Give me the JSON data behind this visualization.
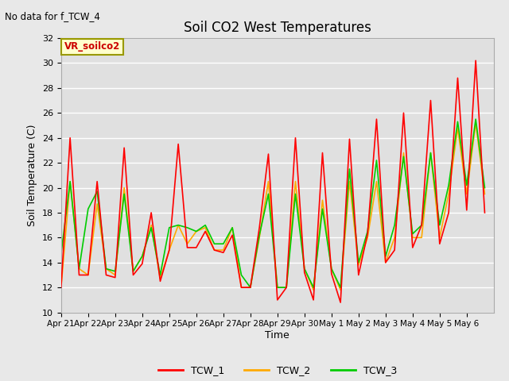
{
  "title": "Soil CO2 West Temperatures",
  "subtitle": "No data for f_TCW_4",
  "ylabel": "Soil Temperature (C)",
  "xlabel": "Time",
  "ylim": [
    10,
    32
  ],
  "yticks": [
    10,
    12,
    14,
    16,
    18,
    20,
    22,
    24,
    26,
    28,
    30,
    32
  ],
  "xtick_labels": [
    "Apr 21",
    "Apr 22",
    "Apr 23",
    "Apr 24",
    "Apr 25",
    "Apr 26",
    "Apr 27",
    "Apr 28",
    "Apr 29",
    "Apr 30",
    "May 1",
    "May 2",
    "May 3",
    "May 4",
    "May 5",
    "May 6"
  ],
  "annotation_text": "VR_soilco2",
  "annotation_box_color": "#ffffcc",
  "annotation_box_edge": "#999900",
  "annotation_text_color": "#cc0000",
  "line_colors": {
    "TCW_1": "#ff0000",
    "TCW_2": "#ffaa00",
    "TCW_3": "#00cc00"
  },
  "background_color": "#e8e8e8",
  "plot_bg_color": "#e0e0e0",
  "grid_color": "#ffffff",
  "TCW_1": [
    12.0,
    24.0,
    13.0,
    13.0,
    20.5,
    13.0,
    12.8,
    23.2,
    13.0,
    13.9,
    18.0,
    12.5,
    15.0,
    23.5,
    15.2,
    15.2,
    16.5,
    15.0,
    14.8,
    16.2,
    12.0,
    12.0,
    16.8,
    22.7,
    11.0,
    12.0,
    24.0,
    13.2,
    11.0,
    22.8,
    13.1,
    10.8,
    23.9,
    13.0,
    16.3,
    25.5,
    14.0,
    15.0,
    26.0,
    15.2,
    17.0,
    27.0,
    15.5,
    18.0,
    28.8,
    18.2,
    30.2,
    18.0
  ],
  "TCW_2": [
    12.0,
    20.5,
    13.5,
    13.0,
    18.7,
    13.5,
    13.0,
    20.0,
    13.3,
    14.5,
    17.0,
    12.7,
    15.0,
    17.0,
    15.5,
    16.5,
    16.8,
    15.0,
    15.0,
    16.8,
    12.0,
    12.0,
    16.0,
    20.5,
    12.0,
    12.0,
    20.5,
    13.5,
    11.8,
    19.0,
    13.5,
    11.8,
    20.5,
    13.8,
    16.0,
    20.5,
    14.0,
    16.0,
    22.8,
    16.0,
    16.0,
    22.8,
    16.0,
    19.5,
    24.8,
    19.5,
    25.2,
    19.5
  ],
  "TCW_3": [
    14.7,
    20.5,
    13.5,
    18.3,
    19.7,
    13.5,
    13.3,
    19.5,
    13.3,
    14.5,
    16.8,
    13.0,
    16.8,
    17.0,
    16.8,
    16.5,
    17.0,
    15.5,
    15.5,
    16.8,
    13.0,
    12.0,
    16.2,
    19.5,
    12.0,
    12.0,
    19.5,
    13.5,
    12.0,
    18.3,
    13.5,
    12.0,
    21.5,
    14.0,
    16.5,
    22.2,
    14.5,
    17.0,
    22.5,
    16.3,
    17.0,
    22.8,
    17.0,
    20.2,
    25.3,
    20.2,
    25.5,
    20.0
  ]
}
